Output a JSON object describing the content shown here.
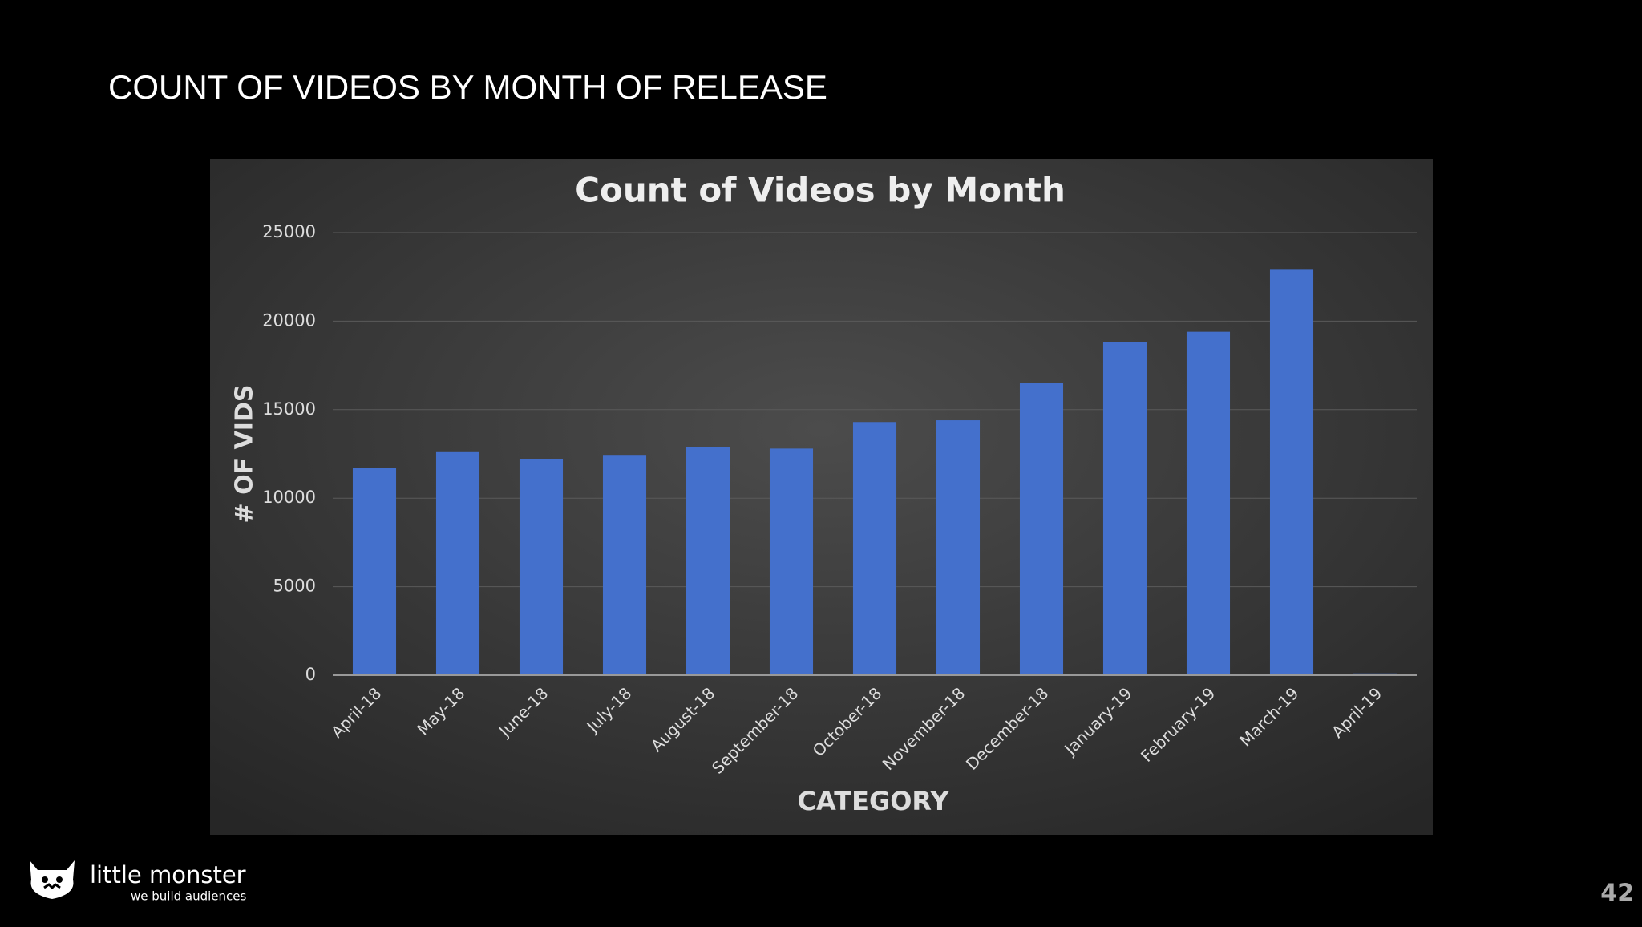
{
  "slide_title": "COUNT OF VIDEOS BY MONTH OF RELEASE",
  "chart_data": {
    "type": "bar",
    "title": "Count of Videos by Month",
    "x_label": "CATEGORY",
    "y_label": "# OF VIDS",
    "categories": [
      "April-18",
      "May-18",
      "June-18",
      "July-18",
      "August-18",
      "September-18",
      "October-18",
      "November-18",
      "December-18",
      "January-19",
      "February-19",
      "March-19",
      "April-19"
    ],
    "values": [
      11700,
      12600,
      12200,
      12400,
      12900,
      12800,
      14300,
      14400,
      16500,
      18800,
      19400,
      22900,
      100
    ],
    "color": "#4470cc",
    "ylim": [
      0,
      25000
    ],
    "yticks": [
      0,
      5000,
      10000,
      15000,
      20000,
      25000
    ],
    "grid": true
  },
  "logo": {
    "name": "little monster",
    "tagline": "we build audiences"
  },
  "page_number": "42"
}
